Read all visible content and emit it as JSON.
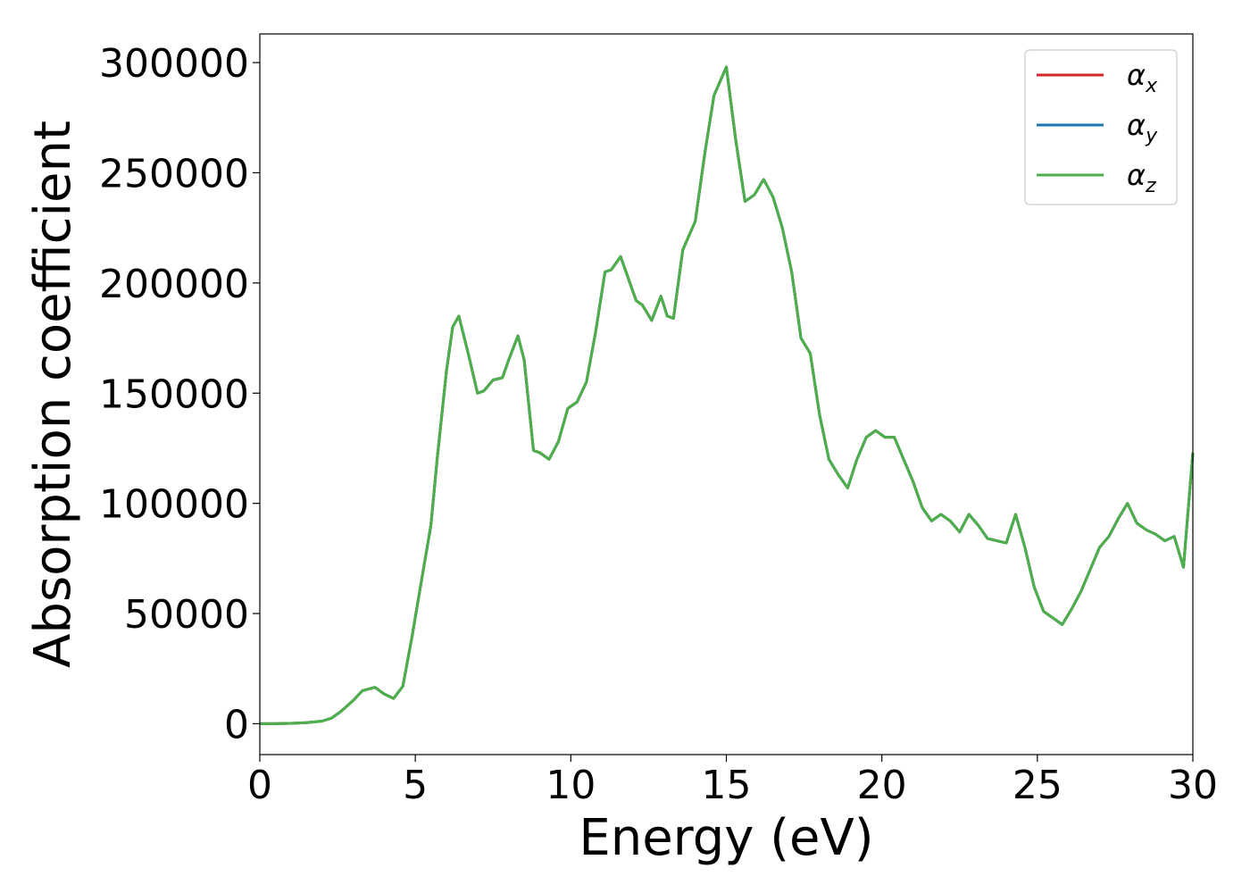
{
  "chart_data": {
    "type": "line",
    "title": "",
    "xlabel": "Energy (eV)",
    "ylabel": "Absorption coefficient",
    "xlim": [
      0,
      30
    ],
    "ylim": [
      -14000,
      313000
    ],
    "xticks": [
      0,
      5,
      10,
      15,
      20,
      25,
      30
    ],
    "yticks": [
      0,
      50000,
      100000,
      150000,
      200000,
      250000,
      300000
    ],
    "grid": false,
    "legend_position": "top-right",
    "x": [
      0,
      0.5,
      1,
      1.5,
      2,
      2.3,
      2.6,
      3,
      3.3,
      3.7,
      4,
      4.3,
      4.6,
      4.9,
      5.2,
      5.5,
      5.7,
      6,
      6.2,
      6.4,
      6.7,
      7,
      7.2,
      7.5,
      7.8,
      8,
      8.3,
      8.5,
      8.8,
      9,
      9.3,
      9.6,
      9.9,
      10.2,
      10.5,
      10.8,
      11.1,
      11.3,
      11.6,
      11.9,
      12.1,
      12.3,
      12.6,
      12.9,
      13.1,
      13.3,
      13.6,
      14,
      14.3,
      14.6,
      15,
      15.3,
      15.6,
      15.9,
      16.2,
      16.5,
      16.8,
      17.1,
      17.4,
      17.7,
      18,
      18.3,
      18.6,
      18.9,
      19.2,
      19.5,
      19.8,
      20.1,
      20.4,
      20.7,
      21,
      21.3,
      21.6,
      21.9,
      22.2,
      22.5,
      22.8,
      23.1,
      23.4,
      23.7,
      24,
      24.3,
      24.6,
      24.9,
      25.2,
      25.5,
      25.8,
      26.1,
      26.4,
      26.7,
      27,
      27.3,
      27.6,
      27.9,
      28.2,
      28.5,
      28.8,
      29.1,
      29.4,
      29.7,
      30
    ],
    "series": [
      {
        "name": "α_x",
        "color": "#d62728",
        "values": [
          0,
          0,
          200,
          500,
          1200,
          2500,
          5500,
          10500,
          15000,
          16500,
          13500,
          11500,
          17000,
          40000,
          65000,
          90000,
          120000,
          160000,
          180000,
          185000,
          168000,
          150000,
          151000,
          156000,
          157000,
          165000,
          176000,
          165000,
          124000,
          123000,
          120000,
          128000,
          143000,
          146000,
          155000,
          178000,
          205000,
          206000,
          212000,
          200000,
          192000,
          190000,
          183000,
          194000,
          185000,
          184000,
          215000,
          228000,
          258000,
          285000,
          298000,
          265000,
          237000,
          240000,
          247000,
          239000,
          225000,
          205000,
          175000,
          168000,
          140000,
          120000,
          113000,
          107000,
          120000,
          130000,
          133000,
          130000,
          130000,
          120000,
          110000,
          98000,
          92000,
          95000,
          92000,
          87000,
          95000,
          90000,
          84000,
          83000,
          82000,
          95000,
          80000,
          62000,
          51000,
          48000,
          45000,
          52000,
          60000,
          70000,
          80000,
          85000,
          93000,
          100000,
          91000,
          88000,
          86000,
          83000,
          85000,
          71000,
          123000
        ]
      },
      {
        "name": "α_y",
        "color": "#1f77b4",
        "values": [
          0,
          0,
          200,
          500,
          1200,
          2500,
          5500,
          10500,
          15000,
          16500,
          13500,
          11500,
          17000,
          40000,
          65000,
          90000,
          120000,
          160000,
          180000,
          185000,
          168000,
          150000,
          151000,
          156000,
          157000,
          165000,
          176000,
          165000,
          124000,
          123000,
          120000,
          128000,
          143000,
          146000,
          155000,
          178000,
          205000,
          206000,
          212000,
          200000,
          192000,
          190000,
          183000,
          194000,
          185000,
          184000,
          215000,
          228000,
          258000,
          285000,
          298000,
          265000,
          237000,
          240000,
          247000,
          239000,
          225000,
          205000,
          175000,
          168000,
          140000,
          120000,
          113000,
          107000,
          120000,
          130000,
          133000,
          130000,
          130000,
          120000,
          110000,
          98000,
          92000,
          95000,
          92000,
          87000,
          95000,
          90000,
          84000,
          83000,
          82000,
          95000,
          80000,
          62000,
          51000,
          48000,
          45000,
          52000,
          60000,
          70000,
          80000,
          85000,
          93000,
          100000,
          91000,
          88000,
          86000,
          83000,
          85000,
          71000,
          123000
        ]
      },
      {
        "name": "α_z",
        "color": "#4daf4a",
        "values": [
          0,
          0,
          200,
          500,
          1200,
          2500,
          5500,
          10500,
          15000,
          16500,
          13500,
          11500,
          17000,
          40000,
          65000,
          90000,
          120000,
          160000,
          180000,
          185000,
          168000,
          150000,
          151000,
          156000,
          157000,
          165000,
          176000,
          165000,
          124000,
          123000,
          120000,
          128000,
          143000,
          146000,
          155000,
          178000,
          205000,
          206000,
          212000,
          200000,
          192000,
          190000,
          183000,
          194000,
          185000,
          184000,
          215000,
          228000,
          258000,
          285000,
          298000,
          265000,
          237000,
          240000,
          247000,
          239000,
          225000,
          205000,
          175000,
          168000,
          140000,
          120000,
          113000,
          107000,
          120000,
          130000,
          133000,
          130000,
          130000,
          120000,
          110000,
          98000,
          92000,
          95000,
          92000,
          87000,
          95000,
          90000,
          84000,
          83000,
          82000,
          95000,
          80000,
          62000,
          51000,
          48000,
          45000,
          52000,
          60000,
          70000,
          80000,
          85000,
          93000,
          100000,
          91000,
          88000,
          86000,
          83000,
          85000,
          71000,
          123000
        ]
      }
    ],
    "legend": [
      {
        "symbol": "α",
        "sub": "x",
        "color": "#d62728"
      },
      {
        "symbol": "α",
        "sub": "y",
        "color": "#1f77b4"
      },
      {
        "symbol": "α",
        "sub": "z",
        "color": "#4daf4a"
      }
    ]
  }
}
